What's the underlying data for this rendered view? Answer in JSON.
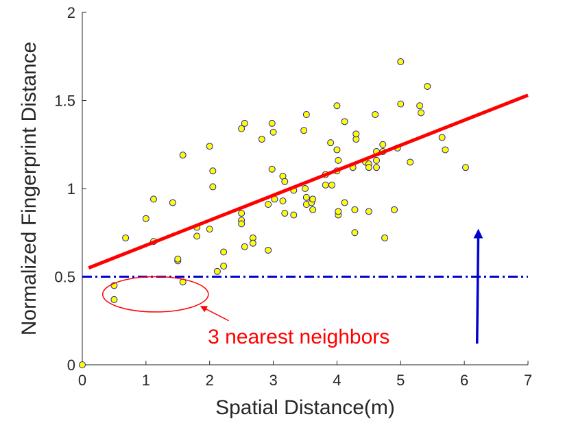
{
  "chart_data": {
    "type": "scatter",
    "xlabel": "Spatial Distance(m)",
    "ylabel": "Normalized Fingerprint Distance",
    "xlim": [
      0,
      7
    ],
    "ylim": [
      0,
      2
    ],
    "x_ticks": [
      0,
      1,
      2,
      3,
      4,
      5,
      6,
      7
    ],
    "y_ticks": [
      0,
      0.5,
      1,
      1.5,
      2
    ],
    "x_tick_labels": [
      "0",
      "1",
      "2",
      "3",
      "4",
      "5",
      "6",
      "7"
    ],
    "y_tick_labels": [
      "0",
      "0.5",
      "1",
      "1.5",
      "2"
    ],
    "grid": false,
    "points": [
      [
        0,
        0
      ],
      [
        0.5,
        0.45
      ],
      [
        0.5,
        0.37
      ],
      [
        0.68,
        0.72
      ],
      [
        1.0,
        0.83
      ],
      [
        1.12,
        0.7
      ],
      [
        1.12,
        0.94
      ],
      [
        1.42,
        0.92
      ],
      [
        1.5,
        0.59
      ],
      [
        1.5,
        0.6
      ],
      [
        1.58,
        0.47
      ],
      [
        1.58,
        1.19
      ],
      [
        1.8,
        0.73
      ],
      [
        1.8,
        0.78
      ],
      [
        2.0,
        0.77
      ],
      [
        2.0,
        1.24
      ],
      [
        2.05,
        1.1
      ],
      [
        2.05,
        1.01
      ],
      [
        2.12,
        0.53
      ],
      [
        2.22,
        0.64
      ],
      [
        2.22,
        0.56
      ],
      [
        2.5,
        0.86
      ],
      [
        2.5,
        0.82
      ],
      [
        2.5,
        0.8
      ],
      [
        2.5,
        1.34
      ],
      [
        2.55,
        1.37
      ],
      [
        2.55,
        0.67
      ],
      [
        2.68,
        0.72
      ],
      [
        2.68,
        0.69
      ],
      [
        2.82,
        1.28
      ],
      [
        2.92,
        0.65
      ],
      [
        2.92,
        0.91
      ],
      [
        2.98,
        1.37
      ],
      [
        2.98,
        1.11
      ],
      [
        3.0,
        1.32
      ],
      [
        3.02,
        0.94
      ],
      [
        3.15,
        1.07
      ],
      [
        3.15,
        0.93
      ],
      [
        3.18,
        1.04
      ],
      [
        3.18,
        0.86
      ],
      [
        3.32,
        0.99
      ],
      [
        3.32,
        0.85
      ],
      [
        3.48,
        1.33
      ],
      [
        3.5,
        1.0
      ],
      [
        3.52,
        1.42
      ],
      [
        3.52,
        0.91
      ],
      [
        3.52,
        0.95
      ],
      [
        3.6,
        0.92
      ],
      [
        3.62,
        0.94
      ],
      [
        3.62,
        0.88
      ],
      [
        3.82,
        1.08
      ],
      [
        3.82,
        1.02
      ],
      [
        3.9,
        1.26
      ],
      [
        3.92,
        1.02
      ],
      [
        4.0,
        1.47
      ],
      [
        4.0,
        1.22
      ],
      [
        4.0,
        1.1
      ],
      [
        4.02,
        1.16
      ],
      [
        4.02,
        0.85
      ],
      [
        4.02,
        0.87
      ],
      [
        4.12,
        1.38
      ],
      [
        4.12,
        0.92
      ],
      [
        4.25,
        1.12
      ],
      [
        4.28,
        0.88
      ],
      [
        4.28,
        0.75
      ],
      [
        4.3,
        1.28
      ],
      [
        4.3,
        1.31
      ],
      [
        4.45,
        1.15
      ],
      [
        4.5,
        1.14
      ],
      [
        4.5,
        1.12
      ],
      [
        4.5,
        0.87
      ],
      [
        4.6,
        1.42
      ],
      [
        4.62,
        1.21
      ],
      [
        4.62,
        1.16
      ],
      [
        4.62,
        1.12
      ],
      [
        4.72,
        1.25
      ],
      [
        4.72,
        1.21
      ],
      [
        4.75,
        0.72
      ],
      [
        4.9,
        0.88
      ],
      [
        4.95,
        1.23
      ],
      [
        5.0,
        1.72
      ],
      [
        5.0,
        1.48
      ],
      [
        5.15,
        1.15
      ],
      [
        5.3,
        1.47
      ],
      [
        5.32,
        1.43
      ],
      [
        5.42,
        1.58
      ],
      [
        5.65,
        1.29
      ],
      [
        5.7,
        1.22
      ],
      [
        6.02,
        1.12
      ]
    ],
    "fit_line": {
      "x": [
        0.1,
        7.0
      ],
      "y": [
        0.55,
        1.53
      ]
    },
    "threshold_line": {
      "y": 0.5
    },
    "colors": {
      "points_fill": "#ffff00",
      "points_edge": "#1f1fa8",
      "fit_line": "#ff0000",
      "threshold_line": "#0000d0",
      "arrow": "#0000d0",
      "annotation": "#ff0000",
      "ellipse": "#ff0000"
    },
    "annotations": [
      {
        "text": "3 nearest neighbors",
        "x": 3.4,
        "y": 0.12
      }
    ],
    "ellipse": {
      "cx": 1.15,
      "cy": 0.4,
      "rx": 0.83,
      "ry": 0.1
    },
    "red_arrow": {
      "from": [
        2.3,
        0.25
      ],
      "to": [
        1.87,
        0.33
      ]
    },
    "blue_arrow": {
      "from": [
        6.2,
        0.12
      ],
      "to": [
        6.22,
        0.76
      ]
    }
  }
}
